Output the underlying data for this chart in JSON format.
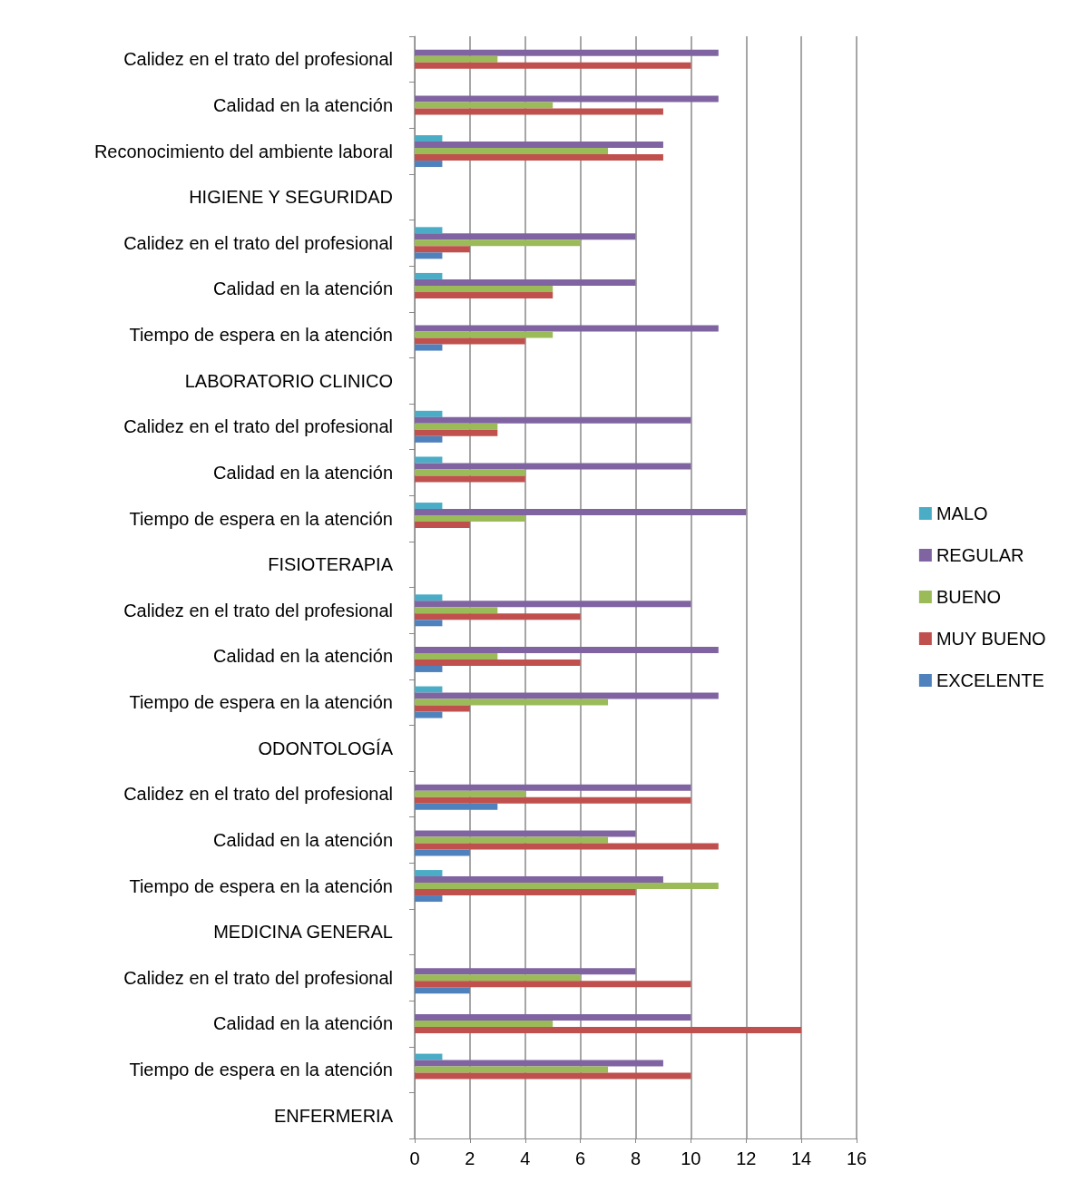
{
  "chart_data": {
    "type": "bar",
    "orientation": "horizontal",
    "categories": [
      "Calidez en el trato del profesional",
      "Calidad en la atención",
      "Reconocimiento del ambiente laboral",
      "HIGIENE Y SEGURIDAD",
      "Calidez en el trato del profesional",
      "Calidad en la atención",
      "Tiempo de espera en la atención",
      "LABORATORIO CLINICO",
      "Calidez en el trato del profesional",
      "Calidad en la atención",
      "Tiempo de espera en la atención",
      "FISIOTERAPIA",
      "Calidez en el trato del profesional",
      "Calidad en la atención",
      "Tiempo de espera en la atención",
      "ODONTOLOGÍA",
      "Calidez en el trato del profesional",
      "Calidad en la atención",
      "Tiempo de espera en la atención",
      "MEDICINA GENERAL",
      "Calidez en el trato del profesional",
      "Calidad en la atención",
      "Tiempo de espera en la atención",
      "ENFERMERIA"
    ],
    "series": [
      {
        "name": "MALO",
        "color": "#4bacc6",
        "values": [
          null,
          null,
          1,
          null,
          1,
          1,
          null,
          null,
          1,
          1,
          1,
          null,
          1,
          null,
          1,
          null,
          null,
          null,
          1,
          null,
          null,
          null,
          1,
          null
        ]
      },
      {
        "name": "REGULAR",
        "color": "#8064a2",
        "values": [
          11,
          11,
          9,
          null,
          8,
          8,
          11,
          null,
          10,
          10,
          12,
          null,
          10,
          11,
          11,
          null,
          10,
          8,
          9,
          null,
          8,
          10,
          9,
          null
        ]
      },
      {
        "name": "BUENO",
        "color": "#9bbb59",
        "values": [
          3,
          5,
          7,
          null,
          6,
          5,
          5,
          null,
          3,
          4,
          4,
          null,
          3,
          3,
          7,
          null,
          4,
          7,
          11,
          null,
          6,
          5,
          7,
          null
        ]
      },
      {
        "name": "MUY BUENO",
        "color": "#c0504d",
        "values": [
          10,
          9,
          9,
          null,
          2,
          5,
          4,
          null,
          3,
          4,
          2,
          null,
          6,
          6,
          2,
          null,
          10,
          11,
          8,
          null,
          10,
          14,
          10,
          null
        ]
      },
      {
        "name": "EXCELENTE",
        "color": "#4f81bd",
        "values": [
          null,
          null,
          1,
          null,
          1,
          null,
          1,
          null,
          1,
          null,
          null,
          null,
          1,
          1,
          1,
          null,
          3,
          2,
          1,
          null,
          2,
          null,
          null,
          null
        ]
      }
    ],
    "xlim": [
      0,
      16
    ],
    "xticks": [
      0,
      2,
      4,
      6,
      8,
      10,
      12,
      14,
      16
    ],
    "grid": "x",
    "legend": "right"
  }
}
